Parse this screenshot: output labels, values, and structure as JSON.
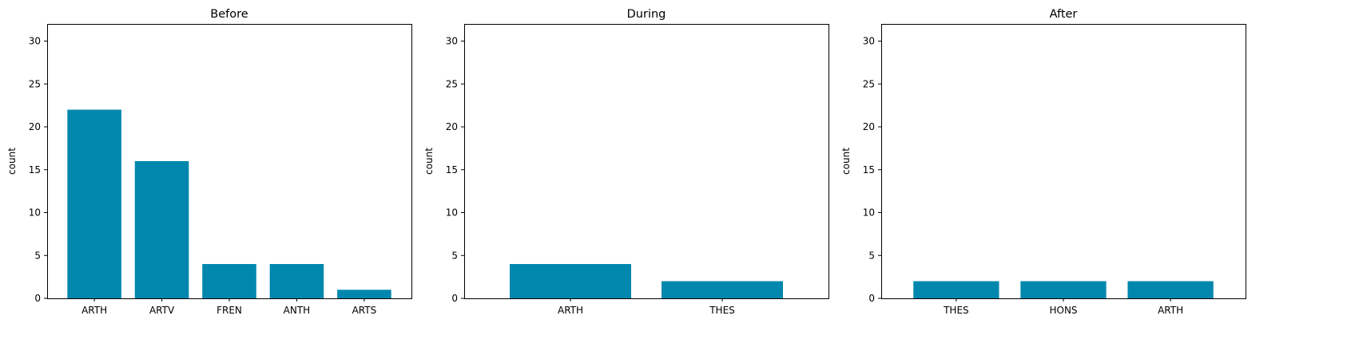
{
  "chart_data": [
    {
      "type": "bar",
      "title": "Before",
      "xlabel": "",
      "ylabel": "count",
      "ylim": [
        0,
        32
      ],
      "yticks": [
        0,
        5,
        10,
        15,
        20,
        25,
        30
      ],
      "categories": [
        "ARTH",
        "ARTV",
        "FREN",
        "ANTH",
        "ARTS"
      ],
      "values": [
        22,
        16,
        4,
        4,
        1
      ],
      "grid": false,
      "bar_color": "#0087ae"
    },
    {
      "type": "bar",
      "title": "During",
      "xlabel": "",
      "ylabel": "count",
      "ylim": [
        0,
        32
      ],
      "yticks": [
        0,
        5,
        10,
        15,
        20,
        25,
        30
      ],
      "categories": [
        "ARTH",
        "THES"
      ],
      "values": [
        4,
        2
      ],
      "grid": false,
      "bar_color": "#0087ae"
    },
    {
      "type": "bar",
      "title": "After",
      "xlabel": "",
      "ylabel": "count",
      "ylim": [
        0,
        32
      ],
      "yticks": [
        0,
        5,
        10,
        15,
        20,
        25,
        30
      ],
      "categories": [
        "THES",
        "HONS",
        "ARTH"
      ],
      "values": [
        2,
        2,
        2
      ],
      "grid": false,
      "bar_color": "#0087ae"
    }
  ]
}
